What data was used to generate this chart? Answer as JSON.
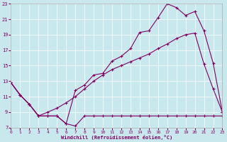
{
  "xlabel": "Windchill (Refroidissement éolien,°C)",
  "bg_color": "#c8e8ee",
  "line_color": "#800060",
  "xlim": [
    0,
    23
  ],
  "ylim": [
    7,
    23
  ],
  "yticks": [
    7,
    9,
    11,
    13,
    15,
    17,
    19,
    21,
    23
  ],
  "xticks": [
    0,
    1,
    2,
    3,
    4,
    5,
    6,
    7,
    8,
    9,
    10,
    11,
    12,
    13,
    14,
    15,
    16,
    17,
    18,
    19,
    20,
    21,
    22,
    23
  ],
  "curve1_x": [
    0,
    1,
    2,
    3,
    4,
    5,
    6,
    7,
    8,
    9,
    10,
    11,
    12,
    13,
    14,
    15,
    16,
    17,
    18,
    19,
    20,
    21,
    22,
    23
  ],
  "curve1_y": [
    12.8,
    11.2,
    10.0,
    8.5,
    8.5,
    8.5,
    7.5,
    7.2,
    8.5,
    8.5,
    8.5,
    8.5,
    8.5,
    8.5,
    8.5,
    8.5,
    8.5,
    8.5,
    8.5,
    8.5,
    8.5,
    8.5,
    8.5,
    8.5
  ],
  "curve2_x": [
    0,
    1,
    2,
    3,
    4,
    5,
    6,
    7,
    8,
    9,
    10,
    11,
    12,
    13,
    14,
    15,
    16,
    17,
    18,
    19,
    20,
    21,
    22,
    23
  ],
  "curve2_y": [
    12.8,
    11.2,
    10.0,
    8.5,
    8.5,
    8.5,
    7.5,
    11.8,
    12.5,
    13.8,
    14.0,
    15.6,
    16.2,
    17.2,
    19.3,
    19.5,
    21.2,
    23.0,
    22.5,
    21.5,
    22.0,
    19.5,
    15.3,
    9.0
  ],
  "curve3_x": [
    0,
    1,
    2,
    3,
    4,
    5,
    6,
    7,
    8,
    9,
    10,
    11,
    12,
    13,
    14,
    15,
    16,
    17,
    18,
    19,
    20,
    21,
    22,
    23
  ],
  "curve3_y": [
    12.8,
    11.2,
    10.0,
    8.5,
    9.0,
    9.5,
    10.2,
    11.0,
    12.0,
    13.0,
    13.8,
    14.5,
    15.0,
    15.5,
    16.0,
    16.5,
    17.2,
    17.8,
    18.5,
    19.0,
    19.2,
    15.2,
    12.0,
    9.0
  ]
}
